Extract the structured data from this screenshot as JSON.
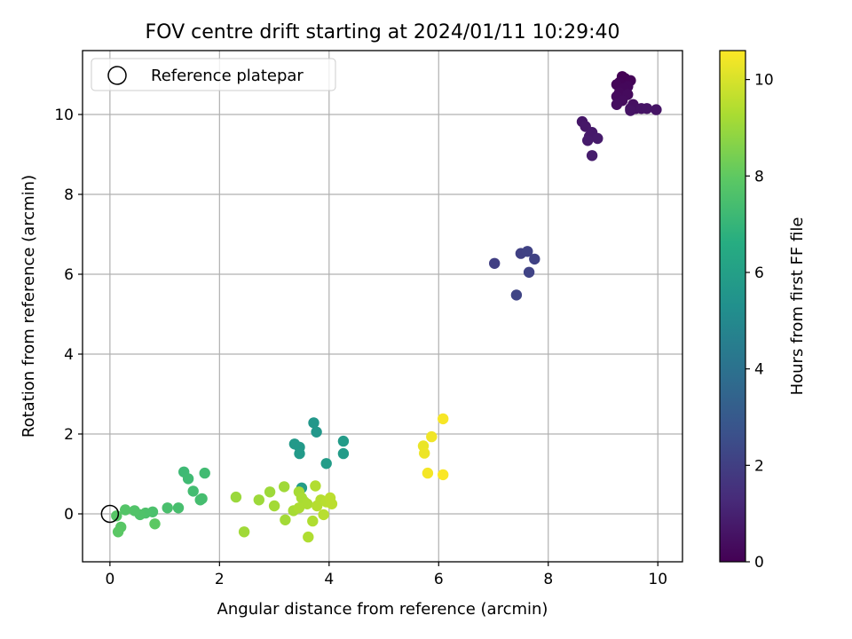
{
  "chart_data": {
    "type": "scatter",
    "title": "FOV centre drift starting at 2024/01/11 10:29:40",
    "xlabel": "Angular distance from reference (arcmin)",
    "ylabel": "Rotation from reference (arcmin)",
    "xlim": [
      -0.5,
      10.45
    ],
    "ylim": [
      -1.2,
      11.6
    ],
    "xticks": [
      0,
      2,
      4,
      6,
      8,
      10
    ],
    "yticks": [
      0,
      2,
      4,
      6,
      8,
      10
    ],
    "grid": true,
    "legend": {
      "position": "top-left",
      "entries": [
        "Reference platepar"
      ]
    },
    "reference_point": {
      "x": 0,
      "y": 0,
      "label": "Reference platepar"
    },
    "colorbar": {
      "label": "Hours from first FF file",
      "colormap": "viridis",
      "range": [
        0,
        10.6
      ],
      "ticks": [
        0,
        2,
        4,
        6,
        8,
        10
      ]
    },
    "points": [
      {
        "x": 9.35,
        "y": 10.95,
        "h": 0.0
      },
      {
        "x": 9.4,
        "y": 10.9,
        "h": 0.05
      },
      {
        "x": 9.3,
        "y": 10.8,
        "h": 0.1
      },
      {
        "x": 9.5,
        "y": 10.85,
        "h": 0.1
      },
      {
        "x": 9.25,
        "y": 10.75,
        "h": 0.15
      },
      {
        "x": 9.45,
        "y": 10.7,
        "h": 0.2
      },
      {
        "x": 9.38,
        "y": 10.65,
        "h": 0.2
      },
      {
        "x": 9.3,
        "y": 10.55,
        "h": 0.25
      },
      {
        "x": 9.45,
        "y": 10.5,
        "h": 0.3
      },
      {
        "x": 9.25,
        "y": 10.45,
        "h": 0.3
      },
      {
        "x": 9.35,
        "y": 10.35,
        "h": 0.35
      },
      {
        "x": 9.25,
        "y": 10.25,
        "h": 0.4
      },
      {
        "x": 9.55,
        "y": 10.25,
        "h": 0.45
      },
      {
        "x": 9.5,
        "y": 10.15,
        "h": 0.5
      },
      {
        "x": 9.6,
        "y": 10.15,
        "h": 0.5
      },
      {
        "x": 9.7,
        "y": 10.15,
        "h": 0.55
      },
      {
        "x": 9.5,
        "y": 10.1,
        "h": 0.55
      },
      {
        "x": 9.8,
        "y": 10.15,
        "h": 0.6
      },
      {
        "x": 9.97,
        "y": 10.12,
        "h": 0.6
      },
      {
        "x": 8.62,
        "y": 9.82,
        "h": 0.65
      },
      {
        "x": 8.68,
        "y": 9.7,
        "h": 0.7
      },
      {
        "x": 8.8,
        "y": 9.55,
        "h": 0.75
      },
      {
        "x": 8.75,
        "y": 9.45,
        "h": 0.75
      },
      {
        "x": 8.9,
        "y": 9.4,
        "h": 0.8
      },
      {
        "x": 8.72,
        "y": 9.35,
        "h": 0.8
      },
      {
        "x": 8.8,
        "y": 8.97,
        "h": 0.85
      },
      {
        "x": 7.02,
        "y": 6.27,
        "h": 2.0
      },
      {
        "x": 7.5,
        "y": 6.52,
        "h": 2.05
      },
      {
        "x": 7.62,
        "y": 6.57,
        "h": 2.1
      },
      {
        "x": 7.75,
        "y": 6.38,
        "h": 2.1
      },
      {
        "x": 7.65,
        "y": 6.05,
        "h": 2.15
      },
      {
        "x": 7.42,
        "y": 5.48,
        "h": 2.2
      },
      {
        "x": 3.72,
        "y": 2.28,
        "h": 5.6
      },
      {
        "x": 3.77,
        "y": 2.05,
        "h": 5.6
      },
      {
        "x": 3.37,
        "y": 1.75,
        "h": 5.7
      },
      {
        "x": 3.46,
        "y": 1.67,
        "h": 5.7
      },
      {
        "x": 3.46,
        "y": 1.51,
        "h": 5.75
      },
      {
        "x": 4.26,
        "y": 1.82,
        "h": 5.8
      },
      {
        "x": 4.26,
        "y": 1.51,
        "h": 5.8
      },
      {
        "x": 3.95,
        "y": 1.26,
        "h": 5.85
      },
      {
        "x": 3.5,
        "y": 0.65,
        "h": 5.9
      },
      {
        "x": 1.35,
        "y": 1.05,
        "h": 7.2
      },
      {
        "x": 1.43,
        "y": 0.88,
        "h": 7.25
      },
      {
        "x": 1.73,
        "y": 1.02,
        "h": 7.3
      },
      {
        "x": 1.52,
        "y": 0.57,
        "h": 7.35
      },
      {
        "x": 1.65,
        "y": 0.35,
        "h": 7.4
      },
      {
        "x": 1.68,
        "y": 0.38,
        "h": 7.4
      },
      {
        "x": 1.25,
        "y": 0.15,
        "h": 7.45
      },
      {
        "x": 1.05,
        "y": 0.15,
        "h": 7.5
      },
      {
        "x": 0.78,
        "y": 0.05,
        "h": 7.55
      },
      {
        "x": 0.65,
        "y": 0.02,
        "h": 7.6
      },
      {
        "x": 0.55,
        "y": -0.02,
        "h": 7.65
      },
      {
        "x": 0.45,
        "y": 0.08,
        "h": 7.7
      },
      {
        "x": 0.28,
        "y": 0.1,
        "h": 7.75
      },
      {
        "x": 0.12,
        "y": -0.05,
        "h": 7.8
      },
      {
        "x": 0.2,
        "y": -0.33,
        "h": 7.85
      },
      {
        "x": 0.15,
        "y": -0.45,
        "h": 7.9
      },
      {
        "x": 0.82,
        "y": -0.25,
        "h": 7.95
      },
      {
        "x": 2.3,
        "y": 0.42,
        "h": 9.0
      },
      {
        "x": 2.72,
        "y": 0.35,
        "h": 9.05
      },
      {
        "x": 2.92,
        "y": 0.55,
        "h": 9.05
      },
      {
        "x": 3.18,
        "y": 0.68,
        "h": 9.1
      },
      {
        "x": 2.45,
        "y": -0.45,
        "h": 9.1
      },
      {
        "x": 3.0,
        "y": 0.2,
        "h": 9.15
      },
      {
        "x": 3.2,
        "y": -0.15,
        "h": 9.15
      },
      {
        "x": 3.35,
        "y": 0.08,
        "h": 9.2
      },
      {
        "x": 3.45,
        "y": 0.55,
        "h": 9.2
      },
      {
        "x": 3.5,
        "y": 0.4,
        "h": 9.25
      },
      {
        "x": 3.55,
        "y": 0.3,
        "h": 9.25
      },
      {
        "x": 3.6,
        "y": 0.25,
        "h": 9.3
      },
      {
        "x": 3.45,
        "y": 0.15,
        "h": 9.3
      },
      {
        "x": 3.62,
        "y": -0.58,
        "h": 9.35
      },
      {
        "x": 3.7,
        "y": -0.18,
        "h": 9.35
      },
      {
        "x": 3.75,
        "y": 0.7,
        "h": 9.4
      },
      {
        "x": 3.78,
        "y": 0.2,
        "h": 9.45
      },
      {
        "x": 3.85,
        "y": 0.35,
        "h": 9.45
      },
      {
        "x": 3.9,
        "y": -0.02,
        "h": 9.5
      },
      {
        "x": 3.95,
        "y": 0.3,
        "h": 9.5
      },
      {
        "x": 4.02,
        "y": 0.4,
        "h": 9.55
      },
      {
        "x": 4.05,
        "y": 0.25,
        "h": 9.55
      },
      {
        "x": 5.72,
        "y": 1.7,
        "h": 10.3
      },
      {
        "x": 5.74,
        "y": 1.52,
        "h": 10.35
      },
      {
        "x": 5.87,
        "y": 1.93,
        "h": 10.4
      },
      {
        "x": 5.8,
        "y": 1.02,
        "h": 10.45
      },
      {
        "x": 6.08,
        "y": 2.38,
        "h": 10.5
      },
      {
        "x": 6.08,
        "y": 0.98,
        "h": 10.55
      }
    ]
  }
}
